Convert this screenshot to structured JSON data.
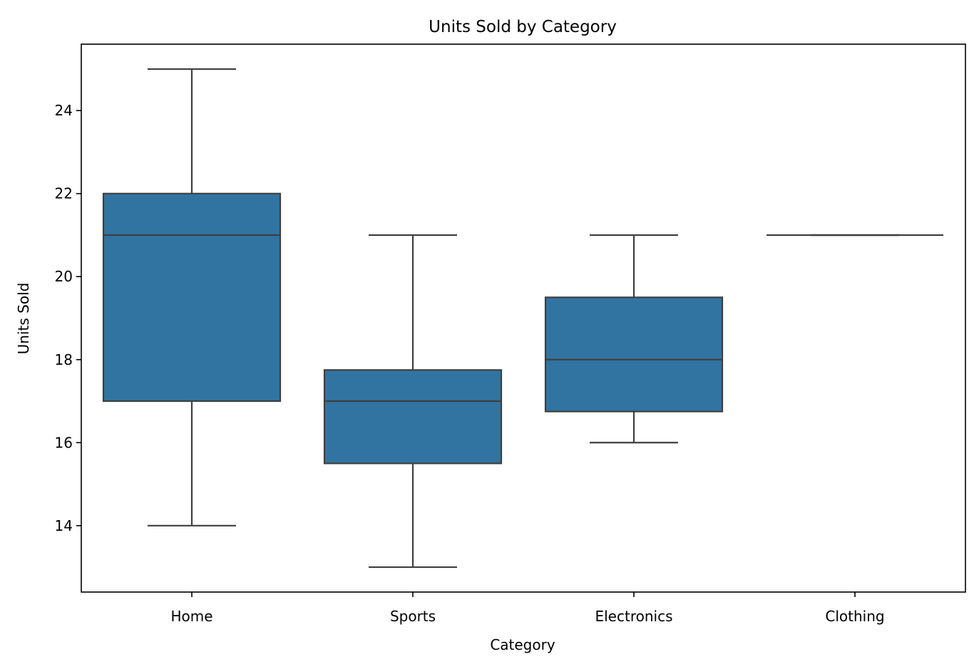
{
  "chart_data": {
    "type": "box",
    "title": "Units Sold by Category",
    "xlabel": "Category",
    "ylabel": "Units Sold",
    "ylim": [
      12.4,
      25.6
    ],
    "yticks": [
      14,
      16,
      18,
      20,
      22,
      24
    ],
    "categories": [
      "Home",
      "Sports",
      "Electronics",
      "Clothing"
    ],
    "boxes": [
      {
        "whisker_low": 14,
        "q1": 17,
        "median": 21,
        "q3": 22,
        "whisker_high": 25
      },
      {
        "whisker_low": 13,
        "q1": 15.5,
        "median": 17,
        "q3": 17.75,
        "whisker_high": 21
      },
      {
        "whisker_low": 16,
        "q1": 16.75,
        "median": 18,
        "q3": 19.5,
        "whisker_high": 21
      },
      {
        "whisker_low": 21,
        "q1": 21,
        "median": 21,
        "q3": 21,
        "whisker_high": 21
      }
    ],
    "box_color": "#3274a1",
    "line_color": "#3f3f3f",
    "grid": false,
    "legend": "none"
  }
}
